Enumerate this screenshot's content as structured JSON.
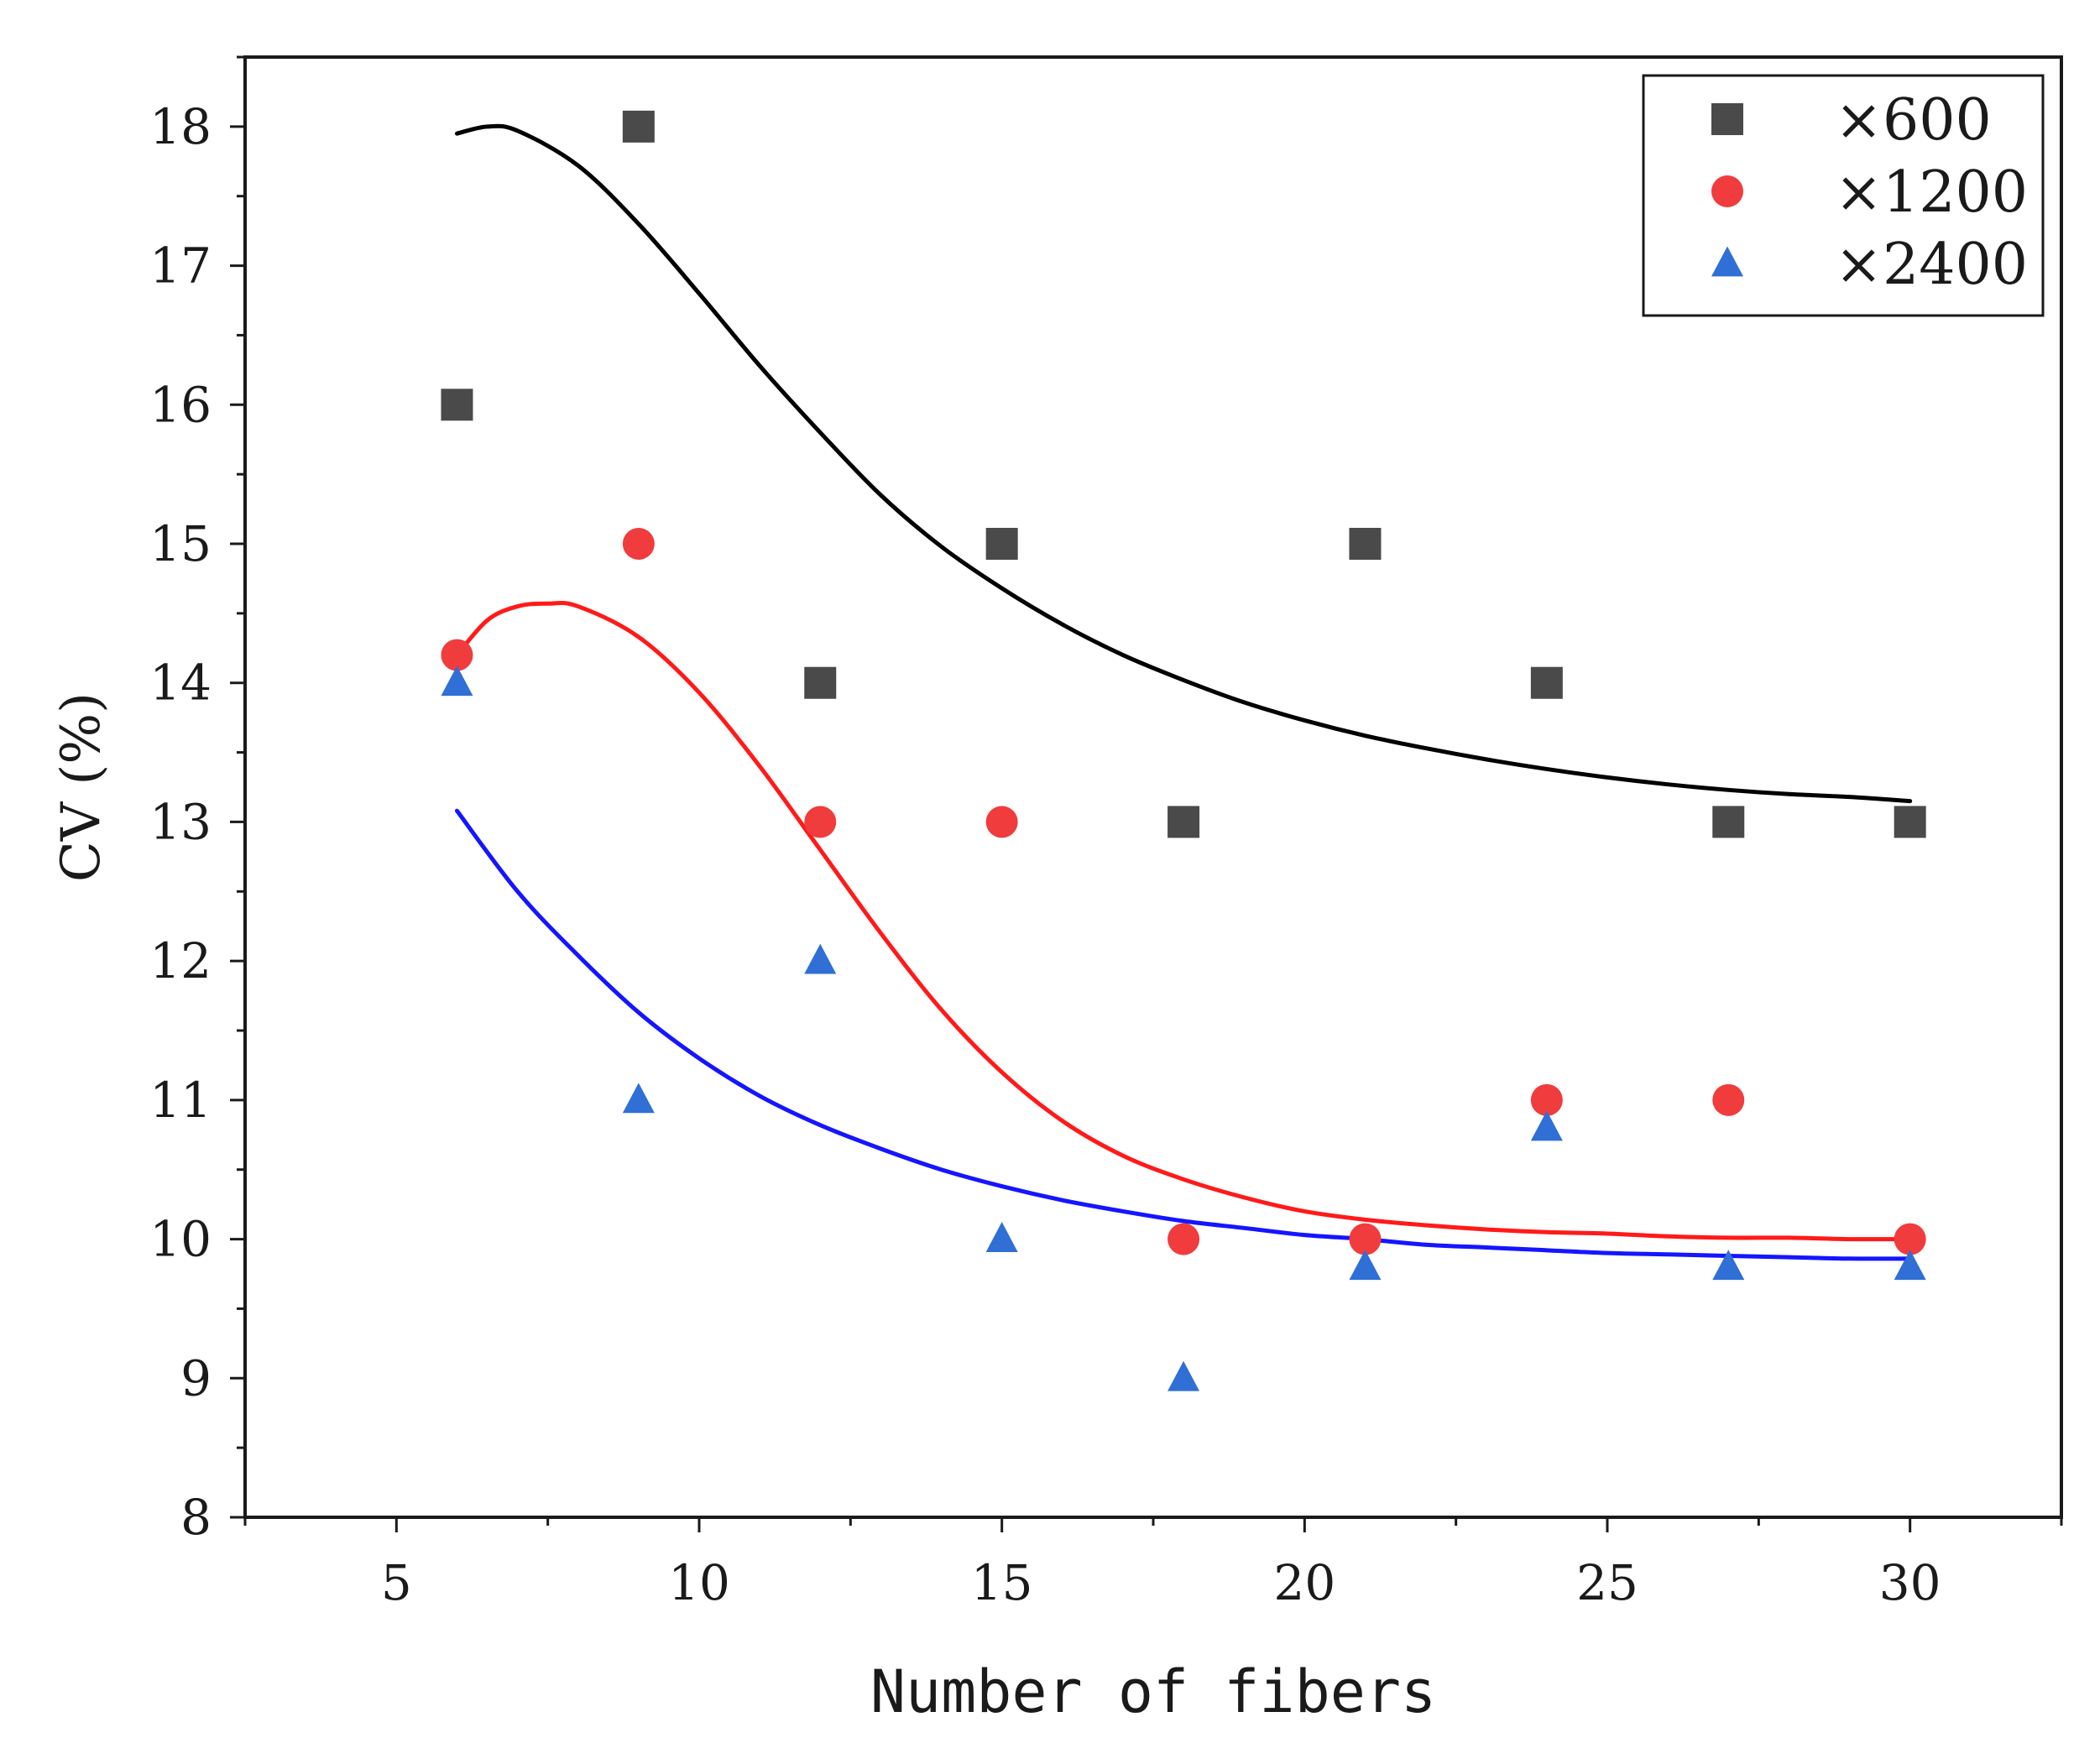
{
  "chart_data": {
    "type": "scatter",
    "xlabel": "Number of fibers",
    "ylabel": "CV (%)",
    "xlim": [
      2.5,
      32.5
    ],
    "ylim": [
      8,
      18.5
    ],
    "x_ticks": [
      5,
      10,
      15,
      20,
      25,
      30
    ],
    "x_tick_labels": [
      "5",
      "10",
      "15",
      "20",
      "25",
      "30"
    ],
    "y_ticks": [
      8,
      9,
      10,
      11,
      12,
      13,
      14,
      15,
      16,
      17,
      18
    ],
    "y_tick_labels": [
      "8",
      "9",
      "10",
      "11",
      "12",
      "13",
      "14",
      "15",
      "16",
      "17",
      "18"
    ],
    "grid": false,
    "legend_position": "top-right",
    "series": [
      {
        "name": "×600",
        "marker": "square",
        "color": "#4a4a4a",
        "line_color": "#000000",
        "x": [
          6,
          9,
          12,
          15,
          18,
          21,
          24,
          27,
          30
        ],
        "y": [
          16,
          18,
          14,
          15,
          13,
          15,
          14,
          13,
          13
        ],
        "fit_curve": {
          "x": [
            6,
            6.5,
            7,
            8,
            9,
            10,
            11,
            12,
            13,
            14,
            15,
            16,
            17,
            18,
            19,
            20,
            21,
            22,
            23,
            24,
            25,
            26,
            27,
            28,
            29,
            30
          ],
          "y": [
            17.95,
            18.0,
            17.97,
            17.72,
            17.3,
            16.8,
            16.28,
            15.8,
            15.35,
            14.98,
            14.68,
            14.42,
            14.2,
            14.02,
            13.86,
            13.73,
            13.62,
            13.53,
            13.45,
            13.38,
            13.32,
            13.27,
            13.23,
            13.2,
            13.18,
            13.15
          ]
        }
      },
      {
        "name": "×1200",
        "marker": "circle",
        "color": "#f03c3c",
        "line_color": "#ff1a1a",
        "x": [
          6,
          9,
          12,
          15,
          18,
          21,
          24,
          27,
          30
        ],
        "y": [
          14.2,
          15,
          13,
          13,
          10,
          10,
          11,
          11,
          10
        ],
        "fit_curve": {
          "x": [
            6,
            6.5,
            7,
            7.5,
            8,
            9,
            10,
            11,
            12,
            13,
            14,
            15,
            16,
            17,
            18,
            19,
            20,
            21,
            22,
            23,
            24,
            25,
            26,
            27,
            28,
            29,
            30
          ],
          "y": [
            14.2,
            14.45,
            14.55,
            14.57,
            14.55,
            14.33,
            13.93,
            13.4,
            12.8,
            12.2,
            11.65,
            11.2,
            10.85,
            10.6,
            10.43,
            10.3,
            10.2,
            10.14,
            10.1,
            10.07,
            10.05,
            10.04,
            10.02,
            10.01,
            10.01,
            10.0,
            10.0
          ]
        }
      },
      {
        "name": "×2400",
        "marker": "triangle",
        "color": "#2f6fd6",
        "line_color": "#1515ff",
        "x": [
          6,
          9,
          12,
          15,
          18,
          21,
          24,
          27,
          30
        ],
        "y": [
          14,
          11,
          12,
          10,
          9,
          9.8,
          10.8,
          9.8,
          9.8
        ],
        "fit_curve": {
          "x": [
            6,
            7,
            8,
            9,
            10,
            11,
            12,
            13,
            14,
            15,
            16,
            17,
            18,
            19,
            20,
            21,
            22,
            23,
            24,
            25,
            26,
            27,
            28,
            29,
            30
          ],
          "y": [
            13.08,
            12.5,
            12.04,
            11.63,
            11.3,
            11.03,
            10.82,
            10.65,
            10.5,
            10.38,
            10.28,
            10.2,
            10.13,
            10.08,
            10.03,
            10.0,
            9.96,
            9.94,
            9.92,
            9.9,
            9.89,
            9.88,
            9.87,
            9.86,
            9.86
          ]
        }
      }
    ]
  }
}
